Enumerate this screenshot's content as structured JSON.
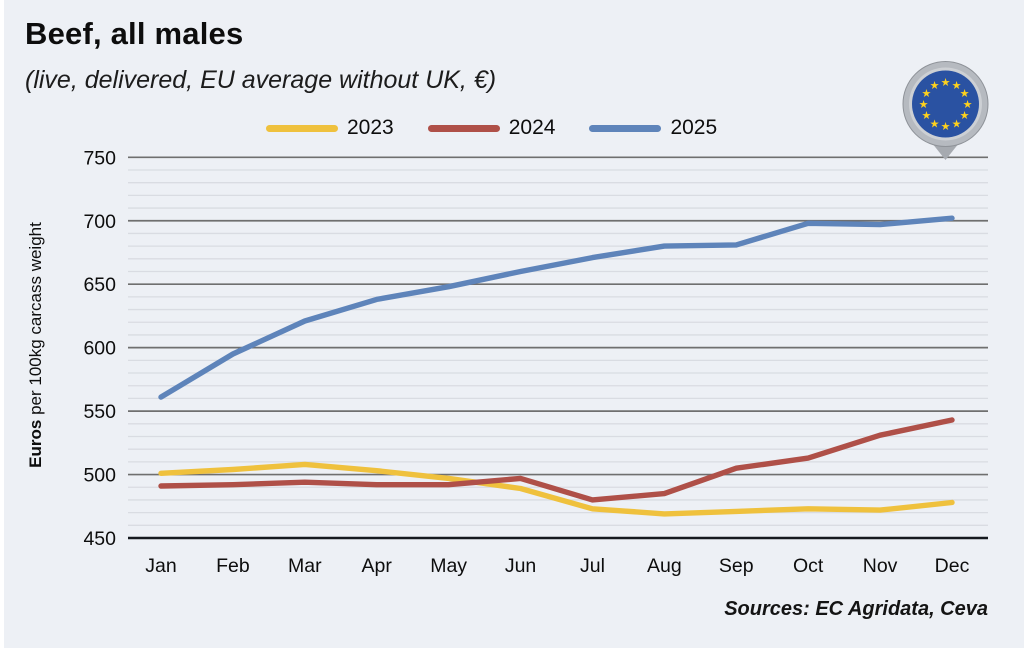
{
  "header": {
    "title": "Beef, all males",
    "subtitle": "(live, delivered, EU average without UK, €)"
  },
  "legend": {
    "items": [
      {
        "label": "2023",
        "color": "#EFC13D"
      },
      {
        "label": "2024",
        "color": "#AF5048"
      },
      {
        "label": "2025",
        "color": "#5E84BA"
      }
    ]
  },
  "y_axis_title": {
    "bold": "Euros",
    "rest": " per 100kg carcass weight"
  },
  "footer": {
    "sources": "Sources: EC Agridata, Ceva"
  },
  "icons": {
    "eu_flag_pin": {
      "name": "eu-flag-pin",
      "pin_gray": "#b6bac0",
      "rim_gray": "#cdd0d4",
      "flag_blue": "#2a52a2",
      "star_color": "#ffd21c",
      "star_glyph": "★"
    }
  },
  "colors": {
    "background": "#edf0f5",
    "major_gridline": "#6f6f6f",
    "minor_gridline": "#d9dce2",
    "bottom_axis": "#15191e",
    "text": "#0d0d0d"
  },
  "chart_data": {
    "type": "line",
    "title": "Beef, all males (live, delivered, EU average without UK, €)",
    "categories": [
      "Jan",
      "Feb",
      "Mar",
      "Apr",
      "May",
      "Jun",
      "Jul",
      "Aug",
      "Sep",
      "Oct",
      "Nov",
      "Dec"
    ],
    "series": [
      {
        "name": "2023",
        "color": "#EFC13D",
        "values": [
          501,
          504,
          508,
          503,
          497,
          489,
          473,
          469,
          471,
          473,
          472,
          478
        ]
      },
      {
        "name": "2024",
        "color": "#AF5048",
        "values": [
          491,
          492,
          494,
          492,
          492,
          497,
          480,
          485,
          505,
          513,
          531,
          543
        ]
      },
      {
        "name": "2025",
        "color": "#5E84BA",
        "values": [
          561,
          595,
          621,
          638,
          648,
          660,
          671,
          680,
          681,
          698,
          697,
          702
        ]
      }
    ],
    "ylabel": "Euros per 100kg carcass weight",
    "xlabel": "",
    "ylim": [
      450,
      750
    ],
    "ytick_step": 50,
    "minor_gridline_step": 10,
    "grid": true,
    "legend_position": "top"
  }
}
